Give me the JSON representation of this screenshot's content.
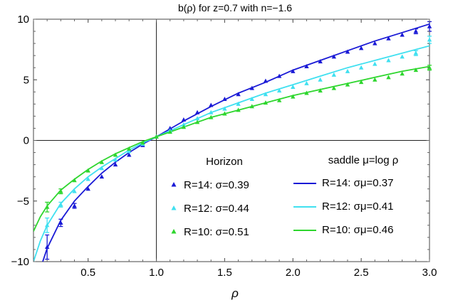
{
  "chart_data": {
    "type": "scatter",
    "title": "b(ρ) for z=0.7 with n=−1.6",
    "xlabel": "ρ",
    "ylabel": "",
    "xlim": [
      0.1,
      3.0
    ],
    "ylim": [
      -10,
      10
    ],
    "x_ticks": [
      0.5,
      1.0,
      1.5,
      2.0,
      2.5,
      3.0
    ],
    "x_tick_labels": [
      "0.5",
      "1.0",
      "1.5",
      "2.0",
      "2.5",
      "3.0"
    ],
    "y_ticks": [
      -10,
      -5,
      0,
      5,
      10
    ],
    "y_tick_labels": [
      "−10",
      "−5",
      "0",
      "5",
      "10"
    ],
    "grid": false,
    "axis_lines_at": {
      "x": 1.0,
      "y": 0
    },
    "legend": {
      "placement": "bottom-right",
      "points_title": "Horizon",
      "lines_title": "saddle μ=log ρ",
      "points": [
        {
          "label": "R=14: σ=0.39",
          "color": "#1a1ad6"
        },
        {
          "label": "R=12: σ=0.44",
          "color": "#40e0f0"
        },
        {
          "label": "R=10: σ=0.51",
          "color": "#2ed62e"
        }
      ],
      "lines": [
        {
          "label": "R=14: σμ=0.37",
          "color": "#1a1ad6"
        },
        {
          "label": "R=12: σμ=0.41",
          "color": "#40e0f0"
        },
        {
          "label": "R=10: σμ=0.46",
          "color": "#2ed62e"
        }
      ]
    },
    "series": [
      {
        "name": "R=14",
        "color": "#1a1ad6",
        "points": {
          "x": [
            0.2,
            0.3,
            0.4,
            0.5,
            0.6,
            0.7,
            0.8,
            0.9,
            1.0,
            1.1,
            1.2,
            1.3,
            1.4,
            1.5,
            1.6,
            1.7,
            1.8,
            1.9,
            2.0,
            2.1,
            2.2,
            2.3,
            2.4,
            2.5,
            2.6,
            2.7,
            2.8,
            2.9,
            3.0
          ],
          "y": [
            -8.8,
            -6.8,
            -5.4,
            -4.0,
            -3.0,
            -2.0,
            -1.2,
            -0.4,
            0.3,
            1.0,
            1.7,
            2.3,
            2.9,
            3.4,
            3.8,
            4.3,
            4.9,
            5.3,
            5.7,
            6.1,
            6.5,
            6.9,
            7.3,
            7.6,
            8.0,
            8.4,
            8.7,
            9.0,
            9.4
          ],
          "err": [
            1.0,
            0.3,
            0.2,
            0.1,
            0.1,
            0.1,
            0.1,
            0.1,
            0.1,
            0.1,
            0.1,
            0.1,
            0.1,
            0.1,
            0.1,
            0.1,
            0.1,
            0.1,
            0.1,
            0.1,
            0.1,
            0.1,
            0.1,
            0.1,
            0.1,
            0.1,
            0.1,
            0.2,
            0.4
          ]
        },
        "curve": {
          "x": [
            0.1,
            0.15,
            0.2,
            0.3,
            0.4,
            0.5,
            0.6,
            0.7,
            0.8,
            0.9,
            1.0,
            1.2,
            1.4,
            1.6,
            1.8,
            2.0,
            2.2,
            2.4,
            2.6,
            2.8,
            3.0
          ],
          "y": [
            -13.0,
            -10.6,
            -8.9,
            -6.6,
            -5.0,
            -3.8,
            -2.7,
            -1.8,
            -1.0,
            -0.3,
            0.3,
            1.6,
            2.8,
            3.9,
            4.8,
            5.8,
            6.6,
            7.4,
            8.2,
            8.9,
            9.6
          ]
        }
      },
      {
        "name": "R=12",
        "color": "#40e0f0",
        "points": {
          "x": [
            0.2,
            0.3,
            0.4,
            0.5,
            0.6,
            0.7,
            0.8,
            0.9,
            1.0,
            1.1,
            1.2,
            1.3,
            1.4,
            1.5,
            1.6,
            1.7,
            1.8,
            1.9,
            2.0,
            2.1,
            2.2,
            2.3,
            2.4,
            2.5,
            2.6,
            2.7,
            2.8,
            2.9,
            3.0
          ],
          "y": [
            -7.0,
            -5.3,
            -4.2,
            -3.2,
            -2.3,
            -1.6,
            -0.9,
            -0.3,
            0.3,
            0.8,
            1.3,
            1.8,
            2.3,
            2.6,
            3.0,
            3.4,
            3.8,
            4.1,
            4.4,
            4.7,
            5.0,
            5.4,
            5.7,
            6.0,
            6.3,
            6.6,
            6.9,
            7.2,
            8.3
          ],
          "err": [
            0.6,
            0.2,
            0.1,
            0.1,
            0.1,
            0.1,
            0.1,
            0.1,
            0.1,
            0.1,
            0.1,
            0.1,
            0.1,
            0.1,
            0.1,
            0.1,
            0.1,
            0.1,
            0.1,
            0.1,
            0.1,
            0.1,
            0.1,
            0.1,
            0.1,
            0.1,
            0.1,
            0.2,
            0.3
          ]
        },
        "curve": {
          "x": [
            0.1,
            0.15,
            0.2,
            0.3,
            0.4,
            0.5,
            0.6,
            0.7,
            0.8,
            0.9,
            1.0,
            1.2,
            1.4,
            1.6,
            1.8,
            2.0,
            2.2,
            2.4,
            2.6,
            2.8,
            3.0
          ],
          "y": [
            -10.0,
            -8.3,
            -7.0,
            -5.2,
            -4.0,
            -3.0,
            -2.2,
            -1.5,
            -0.8,
            -0.2,
            0.3,
            1.3,
            2.3,
            3.1,
            3.9,
            4.6,
            5.3,
            6.0,
            6.6,
            7.2,
            7.8
          ]
        }
      },
      {
        "name": "R=10",
        "color": "#2ed62e",
        "points": {
          "x": [
            0.2,
            0.3,
            0.4,
            0.5,
            0.6,
            0.7,
            0.8,
            0.9,
            1.0,
            1.1,
            1.2,
            1.3,
            1.4,
            1.5,
            1.6,
            1.7,
            1.8,
            1.9,
            2.0,
            2.1,
            2.2,
            2.3,
            2.4,
            2.5,
            2.6,
            2.7,
            2.8,
            2.9,
            3.0
          ],
          "y": [
            -5.5,
            -4.2,
            -3.3,
            -2.5,
            -1.8,
            -1.2,
            -0.7,
            -0.2,
            0.3,
            0.7,
            1.1,
            1.5,
            1.9,
            2.2,
            2.5,
            2.8,
            3.1,
            3.3,
            3.6,
            3.9,
            4.1,
            4.3,
            4.6,
            4.8,
            5.0,
            5.2,
            5.5,
            5.8,
            6.0
          ],
          "err": [
            0.4,
            0.2,
            0.1,
            0.1,
            0.1,
            0.1,
            0.1,
            0.1,
            0.1,
            0.1,
            0.1,
            0.1,
            0.1,
            0.1,
            0.1,
            0.1,
            0.1,
            0.1,
            0.1,
            0.1,
            0.1,
            0.1,
            0.1,
            0.1,
            0.1,
            0.1,
            0.1,
            0.1,
            0.2
          ]
        },
        "curve": {
          "x": [
            0.1,
            0.15,
            0.2,
            0.3,
            0.4,
            0.5,
            0.6,
            0.7,
            0.8,
            0.9,
            1.0,
            1.2,
            1.4,
            1.6,
            1.8,
            2.0,
            2.2,
            2.4,
            2.6,
            2.8,
            3.0
          ],
          "y": [
            -7.5,
            -6.3,
            -5.4,
            -4.1,
            -3.2,
            -2.4,
            -1.7,
            -1.1,
            -0.6,
            -0.1,
            0.3,
            1.1,
            1.9,
            2.5,
            3.1,
            3.7,
            4.2,
            4.7,
            5.2,
            5.7,
            6.1
          ]
        }
      }
    ]
  }
}
